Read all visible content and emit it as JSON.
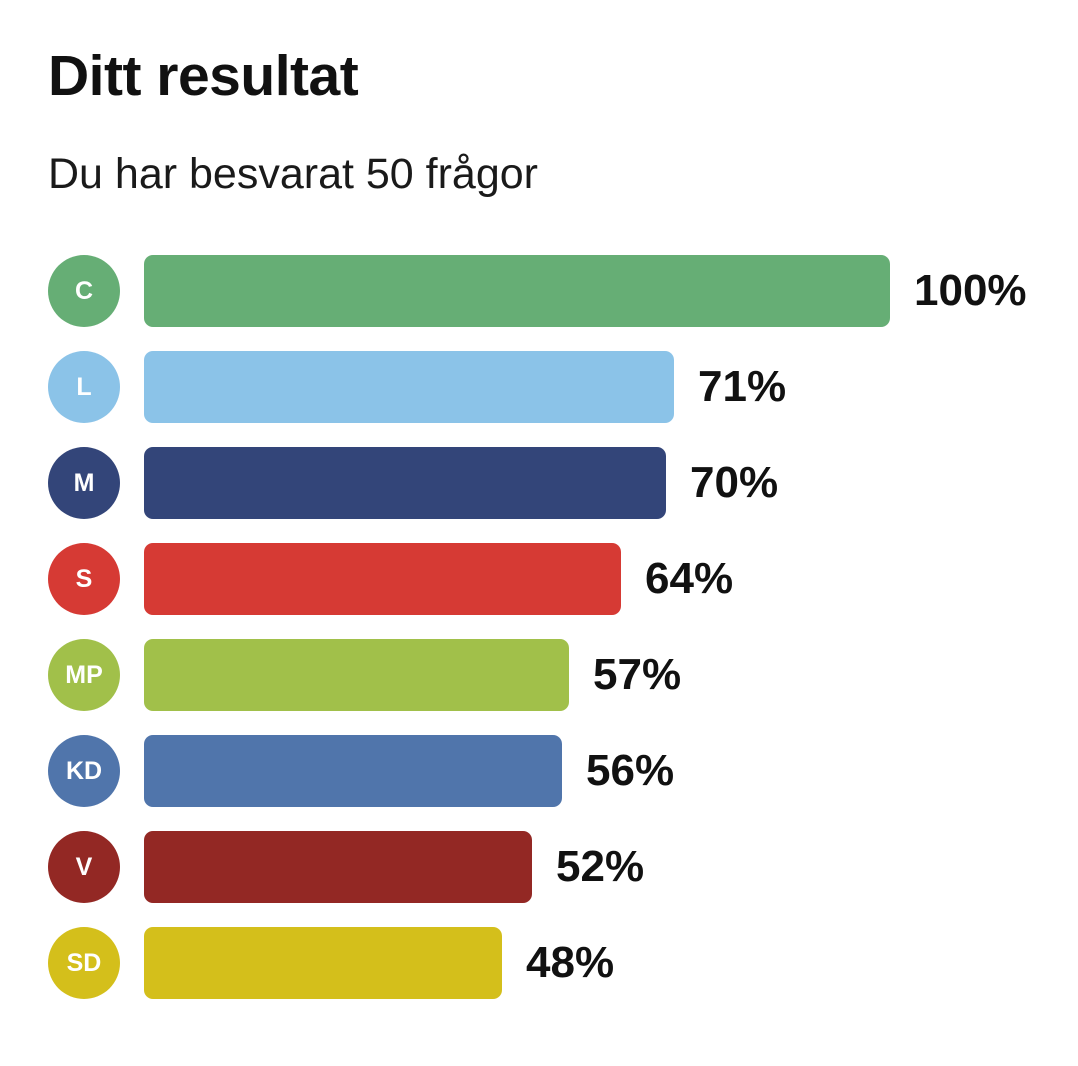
{
  "header": {
    "title": "Ditt resultat",
    "subtitle": "Du har besvarat 50 frågor"
  },
  "chart_data": {
    "type": "bar",
    "orientation": "horizontal",
    "title": "Ditt resultat",
    "subtitle": "Du har besvarat 50 frågor",
    "categories": [
      "C",
      "L",
      "M",
      "S",
      "MP",
      "KD",
      "V",
      "SD"
    ],
    "values": [
      100,
      71,
      70,
      64,
      57,
      56,
      52,
      48
    ],
    "value_labels": [
      "100%",
      "71%",
      "70%",
      "64%",
      "57%",
      "56%",
      "52%",
      "48%"
    ],
    "colors": [
      "#66ae75",
      "#8bc3e8",
      "#334579",
      "#d63a34",
      "#a1c04a",
      "#5075ab",
      "#932824",
      "#d4bf1b"
    ],
    "xlim": [
      0,
      100
    ],
    "grid": false,
    "legend": "none"
  }
}
